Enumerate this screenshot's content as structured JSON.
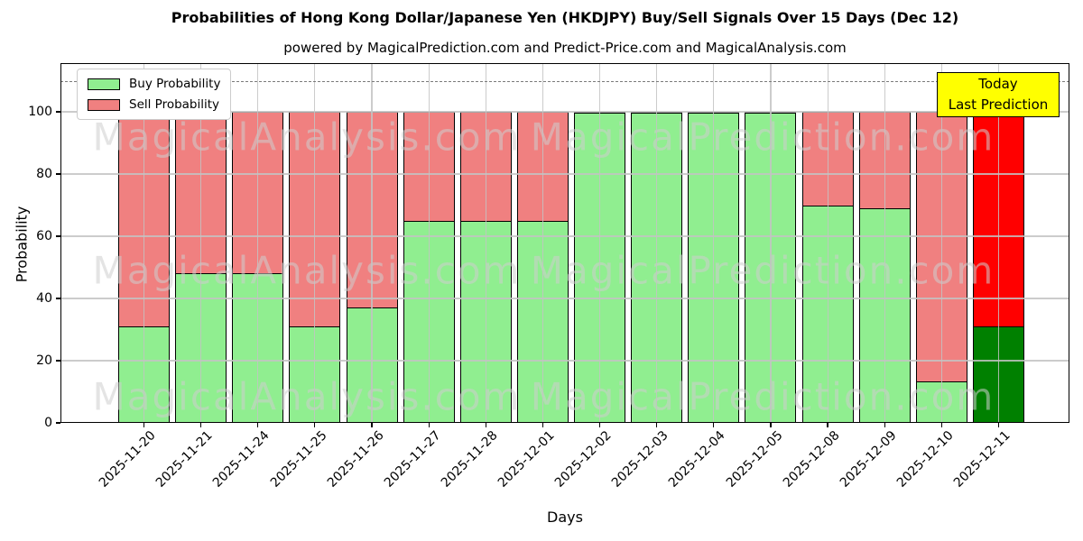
{
  "title": "Probabilities of Hong Kong Dollar/Japanese Yen (HKDJPY) Buy/Sell Signals Over 15 Days (Dec 12)",
  "subtitle": "powered by MagicalPrediction.com and Predict-Price.com and MagicalAnalysis.com",
  "legend": {
    "items": [
      {
        "label": "Buy Probability",
        "color": "#90ee90"
      },
      {
        "label": "Sell Probability",
        "color": "#f08080"
      }
    ]
  },
  "annotation_box": {
    "lines": [
      "Today",
      "Last Prediction"
    ],
    "bg": "#ffff00",
    "border": "#000000"
  },
  "watermarks": [
    "MagicalAnalysis.com",
    "MagicalPrediction.com"
  ],
  "axes": {
    "xlabel": "Days",
    "ylabel": "Probability",
    "yticks": [
      0,
      20,
      40,
      60,
      80,
      100
    ],
    "ylim": [
      0,
      116
    ],
    "dashed_line_y": 110,
    "dashed_line_color": "#7a7a7a",
    "grid": true
  },
  "chart_data": {
    "type": "bar",
    "stacked": true,
    "title": "Probabilities of Hong Kong Dollar/Japanese Yen (HKDJPY) Buy/Sell Signals Over 15 Days (Dec 12)",
    "xlabel": "Days",
    "ylabel": "Probability",
    "ylim": [
      0,
      116
    ],
    "legend_position": "upper left",
    "categories": [
      "2025-11-20",
      "2025-11-21",
      "2025-11-24",
      "2025-11-25",
      "2025-11-26",
      "2025-11-27",
      "2025-11-28",
      "2025-12-01",
      "2025-12-02",
      "2025-12-03",
      "2025-12-04",
      "2025-12-05",
      "2025-12-08",
      "2025-12-09",
      "2025-12-10",
      "2025-12-11"
    ],
    "series": [
      {
        "name": "Buy Probability",
        "color": "#90ee90",
        "today_color": "#008000",
        "values": [
          31,
          48,
          48,
          31,
          37,
          65,
          65,
          65,
          100,
          100,
          100,
          100,
          70,
          69,
          13,
          31
        ]
      },
      {
        "name": "Sell Probability",
        "color": "#f08080",
        "today_color": "#ff0000",
        "values": [
          69,
          52,
          52,
          69,
          63,
          35,
          35,
          35,
          0,
          0,
          0,
          0,
          30,
          31,
          87,
          69
        ]
      }
    ],
    "today_index": 15,
    "threshold_line": 110
  }
}
